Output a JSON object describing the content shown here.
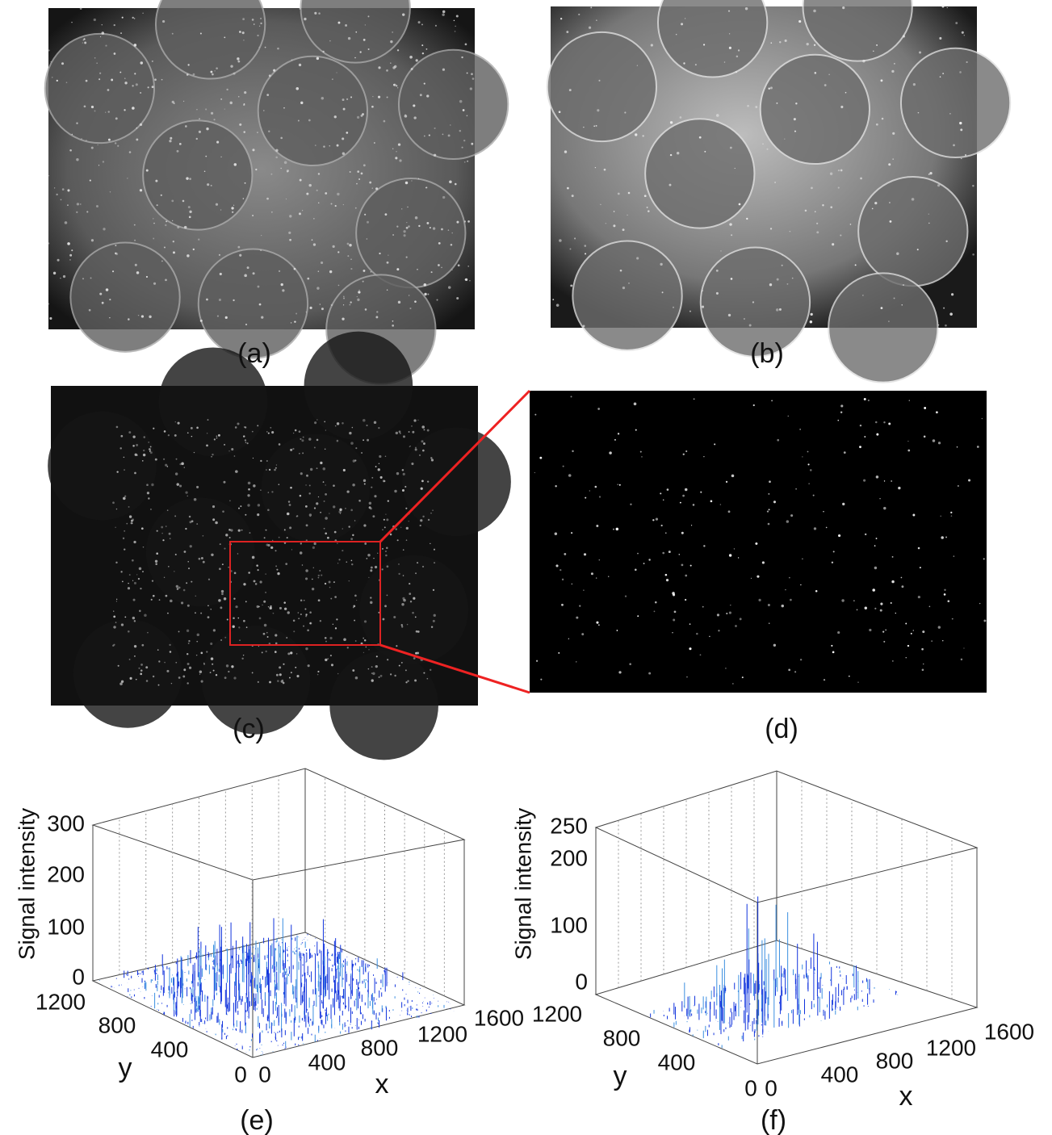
{
  "panels": [
    {
      "label": "(a)"
    },
    {
      "label": "(b)"
    },
    {
      "label": "(c)"
    },
    {
      "label": "(d)"
    },
    {
      "label": "(e)",
      "z_label": "Signal intensity",
      "z_ticks": [
        300,
        200,
        100,
        0
      ],
      "y_label": "y",
      "y_ticks": [
        1200,
        800,
        400,
        0
      ],
      "x_label": "x",
      "x_ticks": [
        0,
        400,
        800,
        1200,
        1600
      ]
    },
    {
      "label": "(f)",
      "z_label": "Signal intensity",
      "z_ticks": [
        250,
        200,
        100,
        0
      ],
      "y_label": "y",
      "y_ticks": [
        1200,
        800,
        400,
        0
      ],
      "x_label": "x",
      "x_ticks": [
        0,
        400,
        800,
        1200,
        1600
      ]
    }
  ]
}
